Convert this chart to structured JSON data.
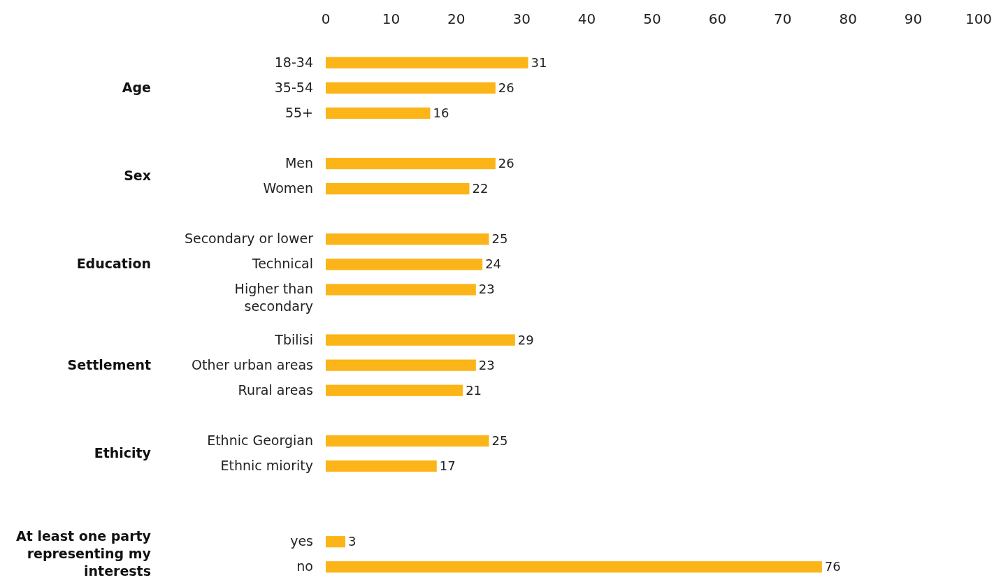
{
  "chart_data": {
    "type": "bar",
    "orientation": "horizontal",
    "categories": [
      "18-34",
      "35-54",
      "55+",
      null,
      "Men",
      "Women",
      null,
      "Secondary or lower",
      "Technical",
      "Higher than secondary",
      null,
      "Tbilisi",
      "Other urban areas",
      "Rural areas",
      null,
      "Ethnic Georgian",
      "Ethnic miority",
      null,
      null,
      "yes",
      "no"
    ],
    "values": [
      31,
      26,
      16,
      null,
      26,
      22,
      null,
      25,
      24,
      23,
      null,
      29,
      23,
      21,
      null,
      25,
      17,
      null,
      null,
      3,
      76
    ],
    "color": "#fbb519",
    "xlim": [
      0,
      100
    ],
    "xticks": [
      0,
      10,
      20,
      30,
      40,
      50,
      60,
      70,
      80,
      90,
      100
    ],
    "data_labels": true,
    "grid": false,
    "annotations": [
      "Age",
      "Sex",
      "Education",
      "Settlement",
      "Ethicity",
      "At least one party representing my interests"
    ]
  }
}
